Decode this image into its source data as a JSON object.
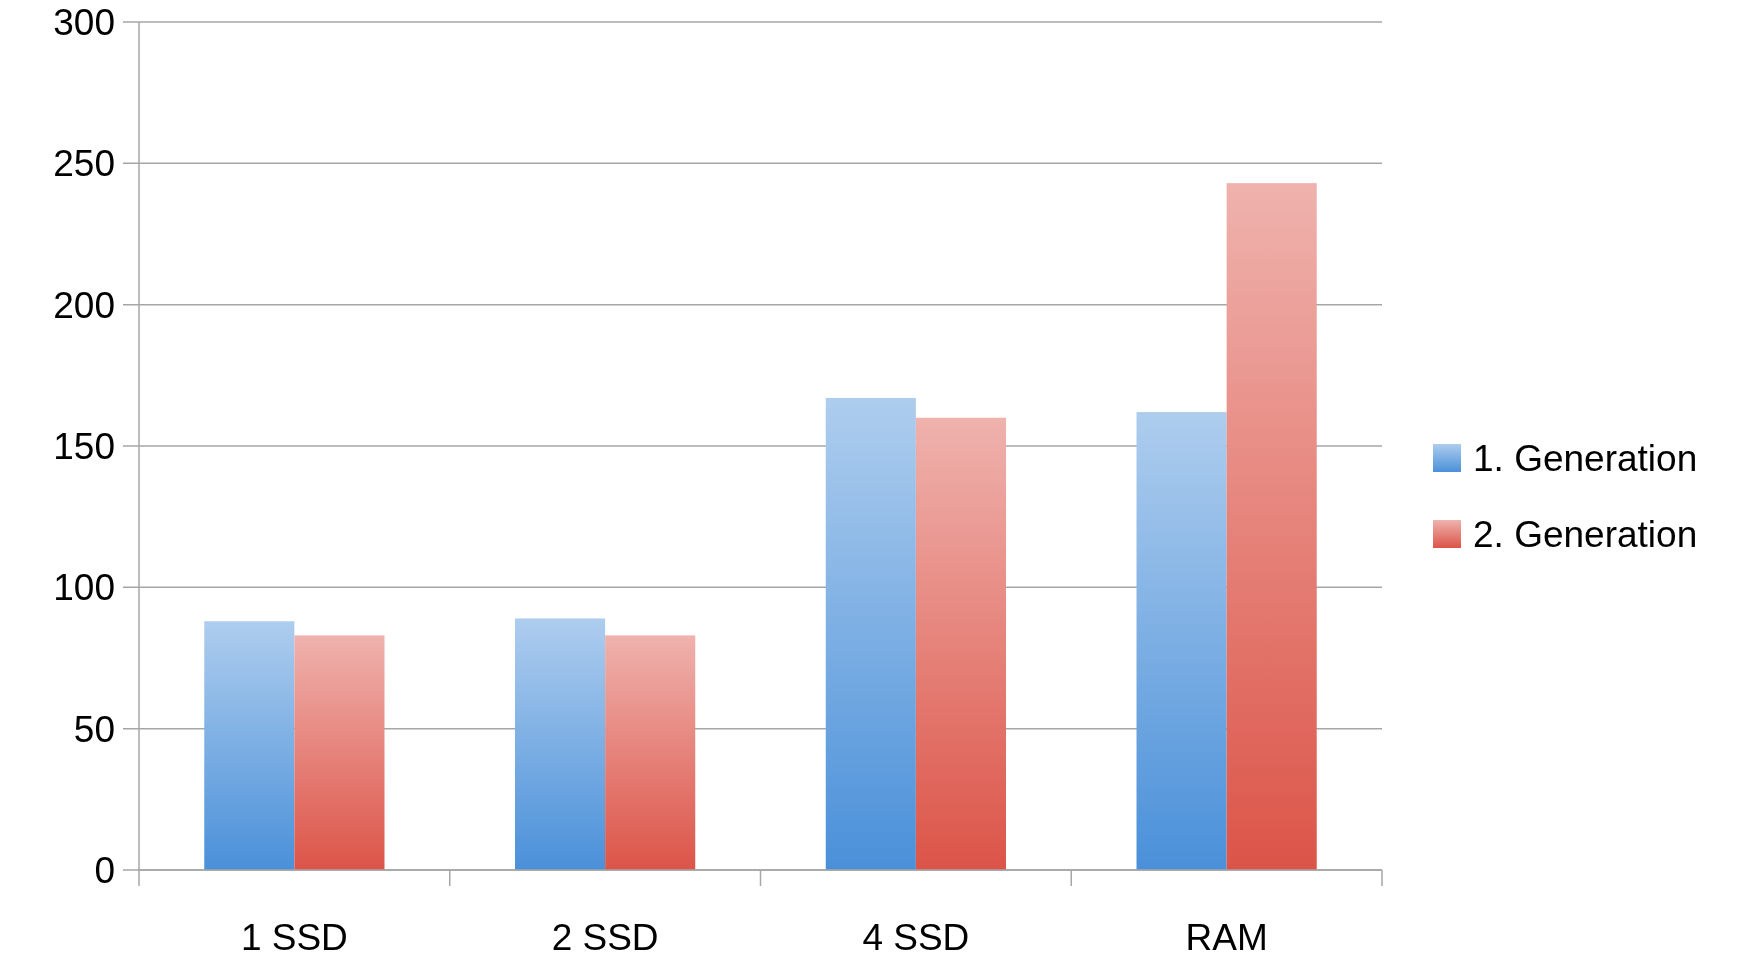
{
  "chart_data": {
    "type": "bar",
    "categories": [
      "1 SSD",
      "2 SSD",
      "4 SSD",
      "RAM"
    ],
    "series": [
      {
        "name": "1. Generation",
        "color": "#4a90d9",
        "values": [
          88,
          89,
          167,
          162
        ]
      },
      {
        "name": "2. Generation",
        "color": "#dc5448",
        "values": [
          83,
          83,
          160,
          243
        ]
      }
    ],
    "ylim": [
      0,
      300
    ],
    "yticks": [
      0,
      50,
      100,
      150,
      200,
      250,
      300
    ],
    "grid": "y",
    "legend": "right"
  }
}
